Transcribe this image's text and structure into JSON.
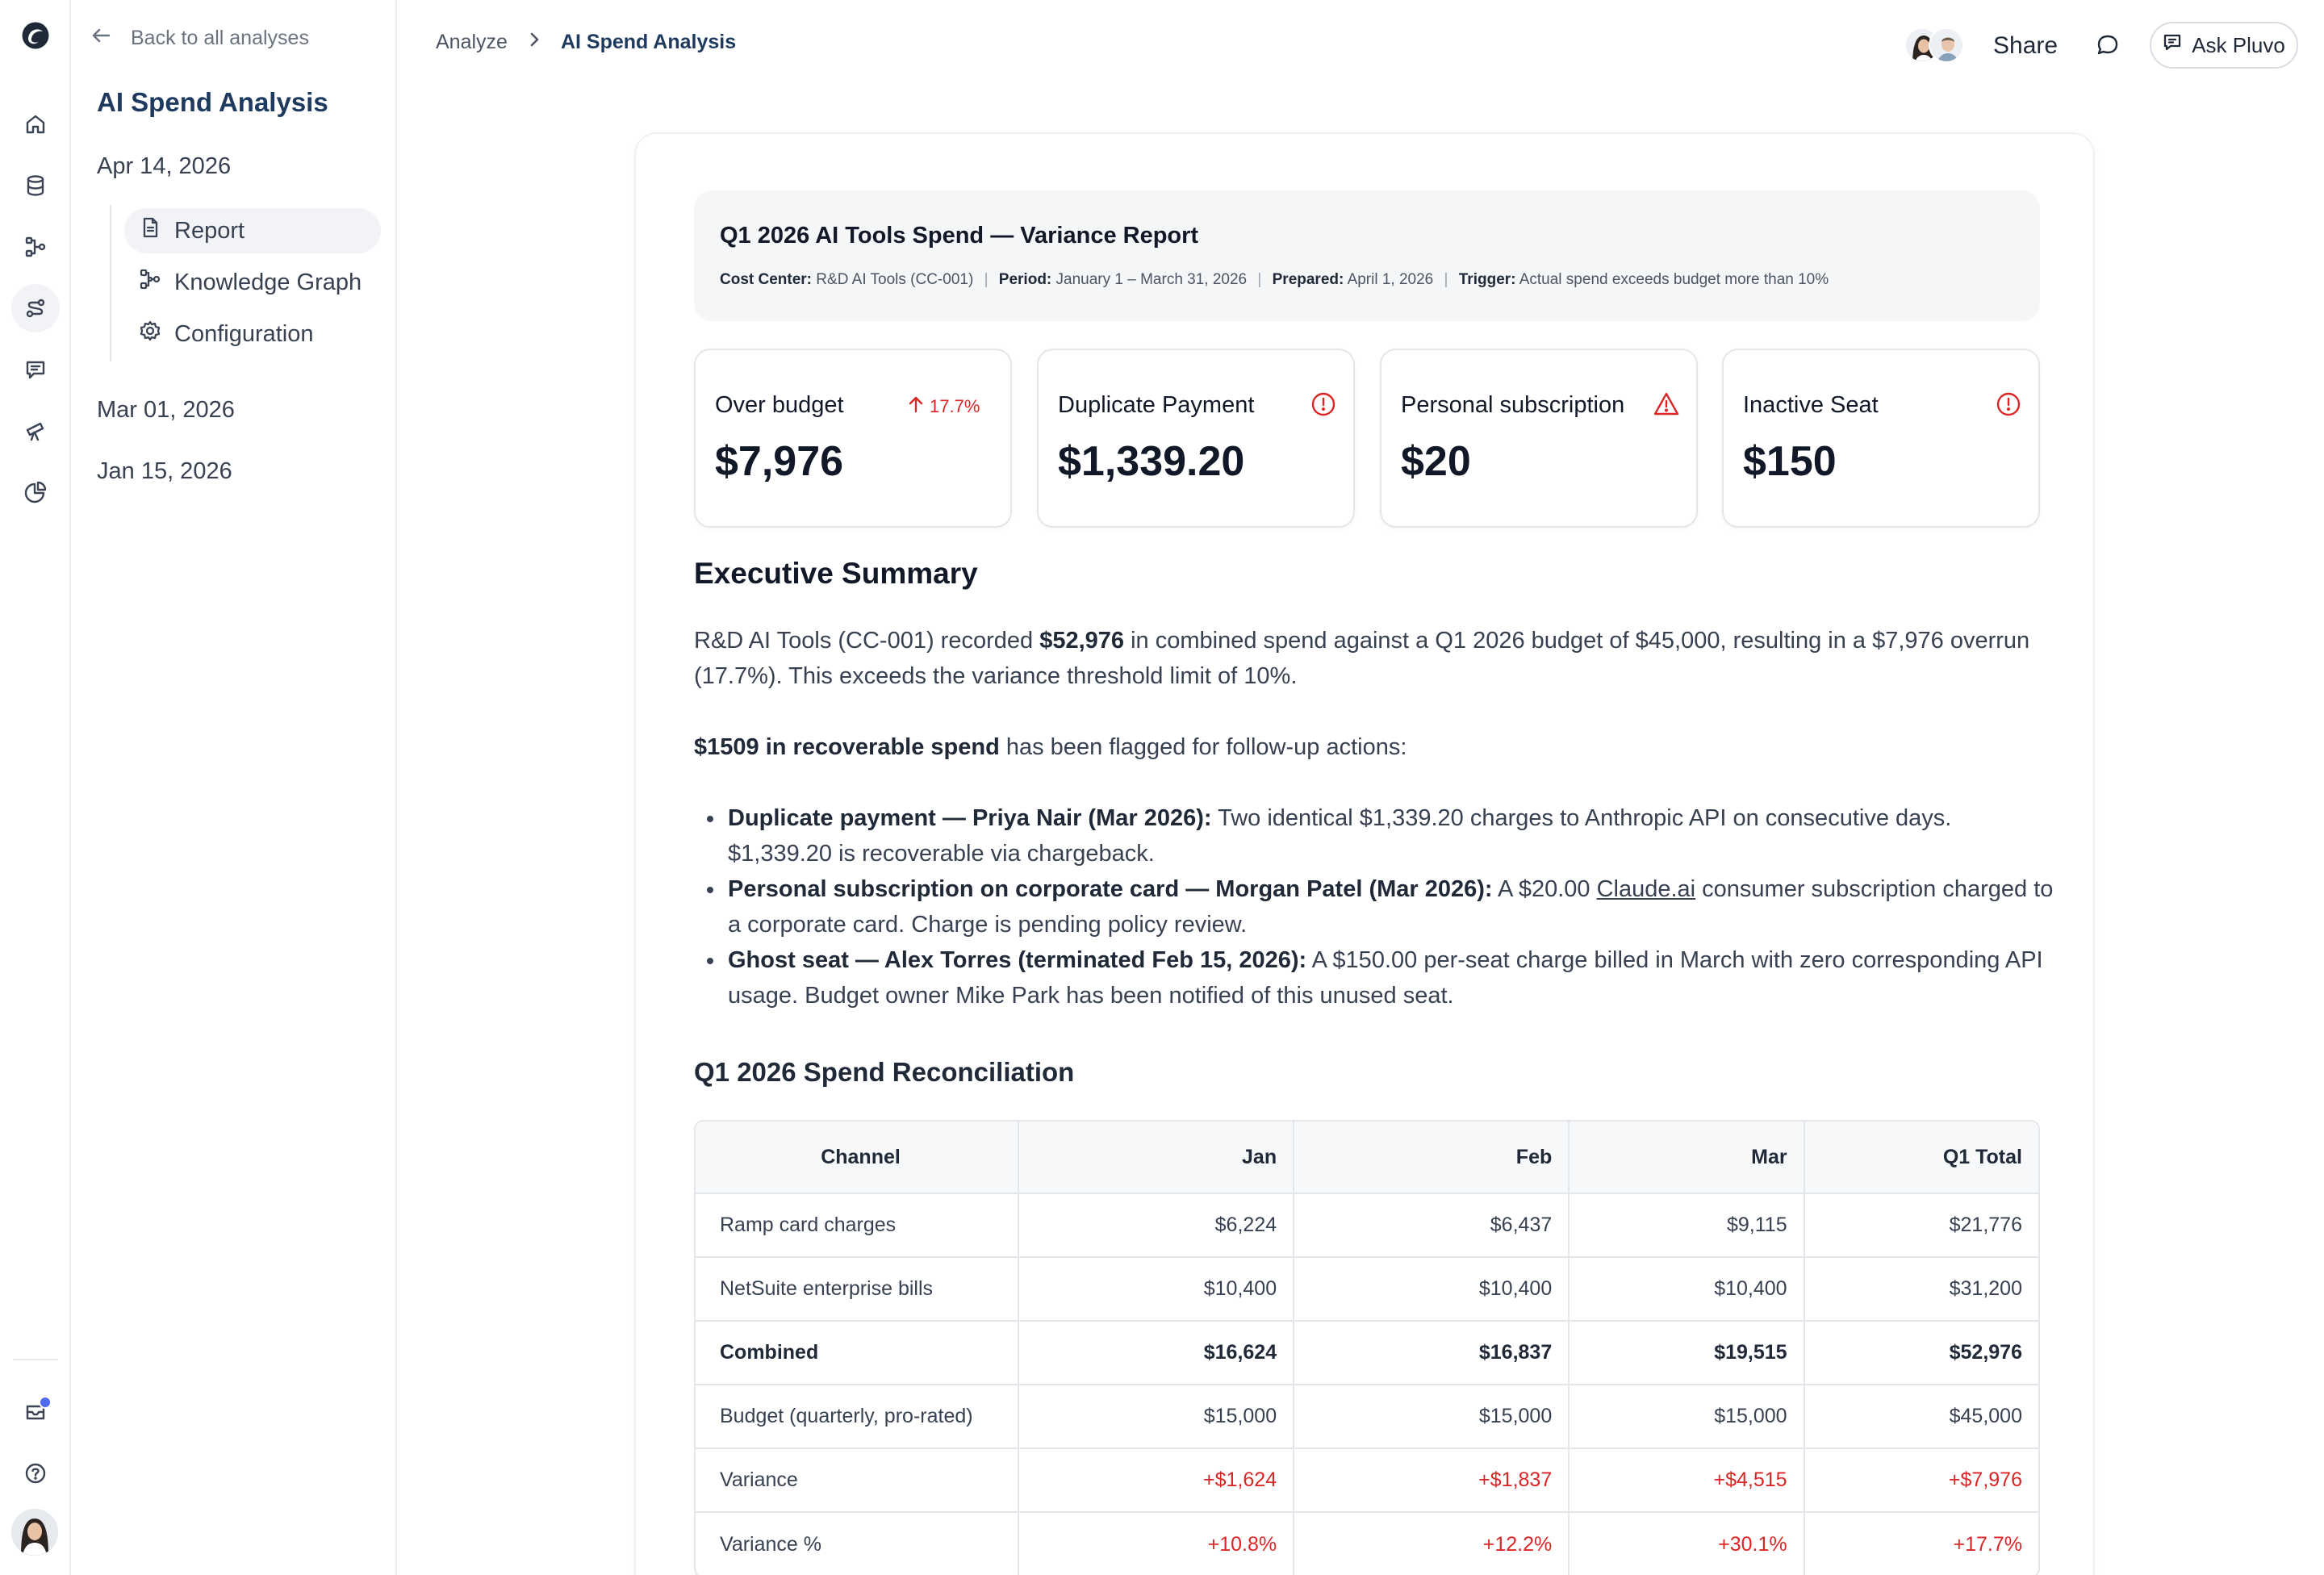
{
  "sidebar": {
    "back_label": "Back to all analyses",
    "title": "AI Spend Analysis",
    "runs": [
      {
        "date": "Apr 14, 2026"
      },
      {
        "date": "Mar 01, 2026"
      },
      {
        "date": "Jan 15, 2026"
      }
    ],
    "sub_items": [
      {
        "label": "Report",
        "icon": "file-icon",
        "active": true
      },
      {
        "label": "Knowledge Graph",
        "icon": "graph-icon",
        "active": false
      },
      {
        "label": "Configuration",
        "icon": "gear-icon",
        "active": false
      }
    ]
  },
  "rail": {
    "items": [
      "logo-icon",
      "home-icon",
      "database-icon",
      "workflow-icon",
      "analyze-icon",
      "chat-icon",
      "telescope-icon",
      "pie-chart-icon",
      "inbox-icon",
      "help-icon"
    ],
    "notification_color": "#4f6bed"
  },
  "header": {
    "breadcrumb": [
      "Analyze",
      "AI Spend Analysis"
    ],
    "share_label": "Share",
    "ask_label": "Ask Pluvo"
  },
  "report": {
    "title": "Q1 2026 AI Tools Spend — Variance Report",
    "meta": {
      "cost_center_label": "Cost Center:",
      "cost_center": "R&D AI Tools (CC-001)",
      "period_label": "Period:",
      "period": "January 1 – March 31, 2026",
      "prepared_label": "Prepared:",
      "prepared": "April 1, 2026",
      "trigger_label": "Trigger:",
      "trigger": "Actual spend exceeds budget more than 10%"
    },
    "cards": [
      {
        "label": "Over budget",
        "value": "$7,976",
        "badge": "17.7%",
        "icon": "arrow-up-icon"
      },
      {
        "label": "Duplicate Payment",
        "value": "$1,339.20",
        "icon": "alert-circle-icon"
      },
      {
        "label": "Personal subscription",
        "value": "$20",
        "icon": "alert-triangle-icon"
      },
      {
        "label": "Inactive Seat",
        "value": "$150",
        "icon": "alert-circle-icon"
      }
    ],
    "alert_color": "#dc2626",
    "exec_heading": "Executive Summary",
    "summary": {
      "p1_a": "R&D AI Tools (CC-001) recorded ",
      "p1_b": "$52,976",
      "p1_c": " in combined spend against a Q1 2026 budget of $45,000, resulting in a $7,976 overrun (17.7%). This exceeds the variance threshold limit of 10%.",
      "p2_a": "$1509 in recoverable spend",
      "p2_b": " has been flagged for follow-up actions:"
    },
    "bullets": [
      {
        "bold": "Duplicate payment — Priya Nair (Mar 2026):",
        "text": " Two identical $1,339.20 charges to Anthropic API on consecutive days. $1,339.20 is recoverable via chargeback."
      },
      {
        "bold": "Personal subscription on corporate card — Morgan Patel  (Mar 2026):",
        "text_a": " A $20.00 ",
        "link": "Claude.ai",
        "text_b": " consumer subscription charged to a corporate card. Charge is pending policy review."
      },
      {
        "bold": "Ghost seat — Alex Torres (terminated Feb 15, 2026):",
        "text": " A $150.00 per-seat charge billed in March with zero corresponding API usage. Budget owner Mike Park has been notified of this unused seat."
      }
    ],
    "recon_heading": "Q1 2026 Spend Reconciliation",
    "table": {
      "columns": [
        "Channel",
        "Jan",
        "Feb",
        "Mar",
        "Q1 Total"
      ],
      "rows": [
        {
          "cells": [
            "Ramp card charges",
            "$6,224",
            "$6,437",
            "$9,115",
            "$21,776"
          ]
        },
        {
          "cells": [
            "NetSuite enterprise bills",
            "$10,400",
            "$10,400",
            "$10,400",
            "$31,200"
          ]
        },
        {
          "cells": [
            "Combined",
            "$16,624",
            "$16,837",
            "$19,515",
            "$52,976"
          ]
        },
        {
          "cells": [
            "Budget (quarterly, pro-rated)",
            "$15,000",
            "$15,000",
            "$15,000",
            "$45,000"
          ]
        },
        {
          "cells": [
            "Variance",
            "+$1,624",
            "+$1,837",
            "+$4,515",
            "+$7,976"
          ]
        },
        {
          "cells": [
            "Variance %",
            "+10.8%",
            "+12.2%",
            "+30.1%",
            "+17.7%"
          ]
        }
      ]
    }
  }
}
